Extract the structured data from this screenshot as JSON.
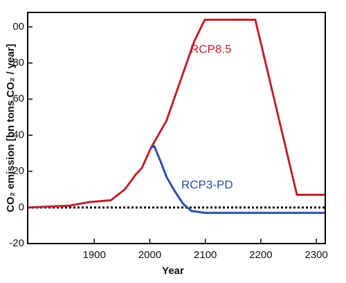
{
  "chart_data": {
    "type": "line",
    "xlabel": "Year",
    "ylabel": "CO₂ emission [bn tons CO₂ / year]",
    "xlim": [
      1780,
      2316
    ],
    "ylim": [
      -20,
      108
    ],
    "xticks": [
      1900,
      2000,
      2100,
      2200,
      2300
    ],
    "yticks": [
      -20,
      0,
      20,
      40,
      60,
      80,
      {
        "value": 100,
        "label": "00"
      }
    ],
    "series": [
      {
        "name": "RCP8.5",
        "color": "#c0202a",
        "x": [
          1780,
          1855,
          1892,
          1930,
          1955,
          1974,
          1986,
          2002,
          2030,
          2055,
          2080,
          2099,
          2190,
          2265,
          2316
        ],
        "values": [
          0,
          1,
          3,
          4,
          10,
          18,
          22,
          33,
          48,
          70,
          92,
          104,
          104,
          7,
          7
        ]
      },
      {
        "name": "RCP3-PD",
        "color": "#2a4fa8",
        "x": [
          2002,
          2008,
          2020,
          2030,
          2045,
          2060,
          2075,
          2100,
          2316
        ],
        "values": [
          33,
          34,
          25,
          17,
          9,
          2,
          -2,
          -3,
          -3
        ]
      }
    ],
    "zero_line": true
  }
}
